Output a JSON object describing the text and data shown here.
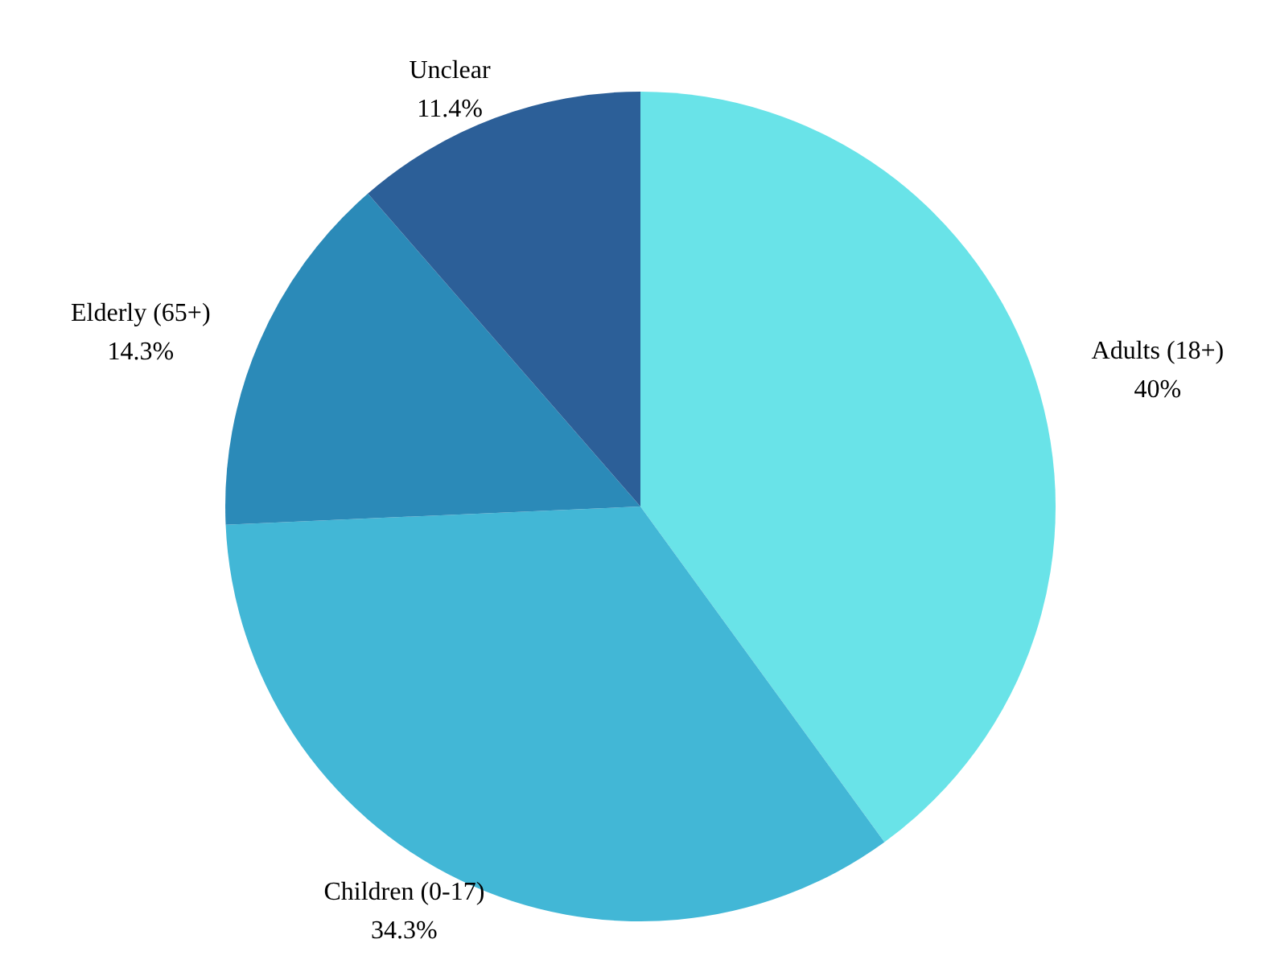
{
  "chart_data": {
    "type": "pie",
    "categories": [
      "Adults (18+)",
      "Children (0-17)",
      "Elderly (65+)",
      "Unclear"
    ],
    "values": [
      40,
      34.3,
      14.3,
      11.4
    ],
    "colors": [
      "#69e3e8",
      "#42b7d6",
      "#2b8ab8",
      "#2c5f98"
    ],
    "value_labels": [
      "40%",
      "34.3%",
      "14.3%",
      "11.4%"
    ]
  }
}
